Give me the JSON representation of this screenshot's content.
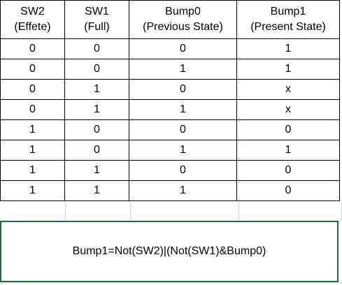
{
  "table": {
    "headers": [
      {
        "line1": "SW2",
        "line2": "(Effete)"
      },
      {
        "line1": "SW1",
        "line2": "(Full)"
      },
      {
        "line1": "Bump0",
        "line2": "(Previous State)"
      },
      {
        "line1": "Bump1",
        "line2": "(Present State)"
      }
    ],
    "rows": [
      [
        "0",
        "0",
        "0",
        "1"
      ],
      [
        "0",
        "0",
        "1",
        "1"
      ],
      [
        "0",
        "1",
        "0",
        "x"
      ],
      [
        "0",
        "1",
        "1",
        "x"
      ],
      [
        "1",
        "0",
        "0",
        "0"
      ],
      [
        "1",
        "0",
        "1",
        "1"
      ],
      [
        "1",
        "1",
        "0",
        "0"
      ],
      [
        "1",
        "1",
        "1",
        "0"
      ]
    ]
  },
  "formula": {
    "text": "Bump1=Not(SW2)|(Not(SW1)&Bump0)"
  },
  "colors": {
    "border": "#000000",
    "selection_border": "#1e7145",
    "gridline": "#d4d4d4"
  }
}
